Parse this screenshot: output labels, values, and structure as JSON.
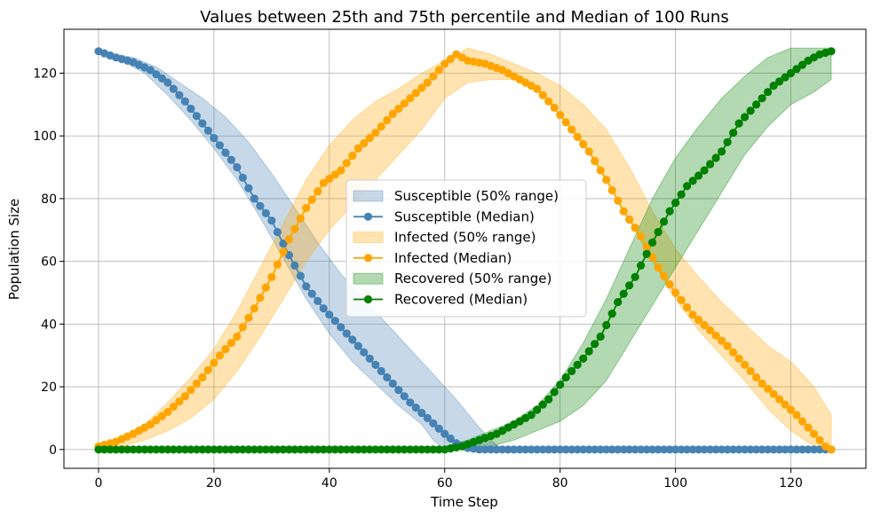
{
  "chart_data": {
    "type": "line",
    "title": "Values between 25th and 75th percentile and Median of 100 Runs",
    "xlabel": "Time Step",
    "ylabel": "Population Size",
    "xlim": [
      -6,
      133
    ],
    "ylim": [
      -6,
      134
    ],
    "xticks": [
      0,
      20,
      40,
      60,
      80,
      100,
      120
    ],
    "yticks": [
      0,
      20,
      40,
      60,
      80,
      100,
      120
    ],
    "grid": true,
    "legend_position": "center",
    "x_start": 0,
    "x_end": 127,
    "series": [
      {
        "name": "Susceptible",
        "median_label": "Susceptible (Median)",
        "range_label": "Susceptible (50% range)",
        "color": "#4682b4",
        "median_points": [
          [
            0,
            127
          ],
          [
            3,
            125
          ],
          [
            6,
            123.5
          ],
          [
            9,
            121
          ],
          [
            12,
            117
          ],
          [
            15,
            111
          ],
          [
            18,
            104
          ],
          [
            21,
            97
          ],
          [
            24,
            90
          ],
          [
            27,
            80
          ],
          [
            30,
            73
          ],
          [
            33,
            62
          ],
          [
            36,
            52
          ],
          [
            39,
            45
          ],
          [
            42,
            39
          ],
          [
            45,
            33
          ],
          [
            48,
            27
          ],
          [
            51,
            21
          ],
          [
            54,
            15
          ],
          [
            57,
            10
          ],
          [
            60,
            5
          ],
          [
            62,
            2
          ],
          [
            64,
            0.5
          ],
          [
            66,
            0
          ],
          [
            127,
            0
          ]
        ],
        "upper_points": [
          [
            0,
            127
          ],
          [
            6,
            125
          ],
          [
            10,
            122
          ],
          [
            14,
            117
          ],
          [
            18,
            112
          ],
          [
            22,
            106
          ],
          [
            26,
            98
          ],
          [
            30,
            88
          ],
          [
            34,
            77
          ],
          [
            38,
            66
          ],
          [
            42,
            56
          ],
          [
            46,
            48
          ],
          [
            50,
            40
          ],
          [
            54,
            32
          ],
          [
            58,
            24
          ],
          [
            62,
            16
          ],
          [
            66,
            7
          ],
          [
            68,
            3
          ],
          [
            70,
            0
          ],
          [
            127,
            0
          ]
        ],
        "lower_points": [
          [
            0,
            127
          ],
          [
            4,
            124
          ],
          [
            8,
            120
          ],
          [
            12,
            113
          ],
          [
            16,
            105
          ],
          [
            20,
            96
          ],
          [
            24,
            86
          ],
          [
            28,
            74
          ],
          [
            32,
            61
          ],
          [
            36,
            48
          ],
          [
            40,
            37
          ],
          [
            44,
            28
          ],
          [
            48,
            21
          ],
          [
            52,
            14
          ],
          [
            56,
            8
          ],
          [
            58,
            3
          ],
          [
            60,
            0
          ],
          [
            127,
            0
          ]
        ]
      },
      {
        "name": "Infected",
        "median_label": "Infected (Median)",
        "range_label": "Infected (50% range)",
        "color": "#ffa500",
        "median_points": [
          [
            0,
            1
          ],
          [
            3,
            2.5
          ],
          [
            6,
            5
          ],
          [
            9,
            8
          ],
          [
            12,
            12
          ],
          [
            15,
            17
          ],
          [
            18,
            23
          ],
          [
            21,
            30
          ],
          [
            24,
            36
          ],
          [
            27,
            45
          ],
          [
            30,
            55
          ],
          [
            33,
            67
          ],
          [
            36,
            77
          ],
          [
            39,
            85
          ],
          [
            42,
            89
          ],
          [
            45,
            96
          ],
          [
            48,
            101
          ],
          [
            51,
            107
          ],
          [
            54,
            112
          ],
          [
            57,
            117
          ],
          [
            60,
            123
          ],
          [
            62,
            126
          ],
          [
            64,
            124
          ],
          [
            67,
            123
          ],
          [
            70,
            121
          ],
          [
            73,
            118
          ],
          [
            76,
            115
          ],
          [
            79,
            109
          ],
          [
            82,
            102
          ],
          [
            85,
            95
          ],
          [
            88,
            86
          ],
          [
            91,
            76
          ],
          [
            94,
            68
          ],
          [
            97,
            58
          ],
          [
            100,
            50
          ],
          [
            103,
            43
          ],
          [
            106,
            38
          ],
          [
            109,
            33
          ],
          [
            112,
            27
          ],
          [
            115,
            21
          ],
          [
            118,
            16
          ],
          [
            121,
            11
          ],
          [
            124,
            5
          ],
          [
            126,
            1
          ],
          [
            127,
            0
          ]
        ],
        "upper_points": [
          [
            0,
            1
          ],
          [
            4,
            4
          ],
          [
            8,
            8
          ],
          [
            12,
            15
          ],
          [
            16,
            23
          ],
          [
            20,
            32
          ],
          [
            24,
            44
          ],
          [
            28,
            58
          ],
          [
            32,
            72
          ],
          [
            36,
            86
          ],
          [
            40,
            97
          ],
          [
            44,
            105
          ],
          [
            48,
            111
          ],
          [
            52,
            115
          ],
          [
            56,
            120
          ],
          [
            60,
            124
          ],
          [
            64,
            128
          ],
          [
            68,
            126
          ],
          [
            72,
            123
          ],
          [
            76,
            120
          ],
          [
            80,
            116
          ],
          [
            84,
            110
          ],
          [
            88,
            102
          ],
          [
            92,
            90
          ],
          [
            96,
            76
          ],
          [
            100,
            64
          ],
          [
            104,
            55
          ],
          [
            108,
            47
          ],
          [
            112,
            40
          ],
          [
            116,
            33
          ],
          [
            120,
            28
          ],
          [
            124,
            20
          ],
          [
            127,
            11
          ]
        ],
        "lower_points": [
          [
            0,
            0
          ],
          [
            4,
            1
          ],
          [
            8,
            3
          ],
          [
            12,
            6
          ],
          [
            16,
            10
          ],
          [
            20,
            16
          ],
          [
            24,
            25
          ],
          [
            28,
            36
          ],
          [
            32,
            48
          ],
          [
            36,
            60
          ],
          [
            40,
            70
          ],
          [
            44,
            78
          ],
          [
            48,
            86
          ],
          [
            52,
            94
          ],
          [
            56,
            102
          ],
          [
            60,
            112
          ],
          [
            64,
            117
          ],
          [
            68,
            118
          ],
          [
            72,
            118
          ],
          [
            76,
            114
          ],
          [
            80,
            108
          ],
          [
            84,
            98
          ],
          [
            88,
            86
          ],
          [
            92,
            73
          ],
          [
            96,
            60
          ],
          [
            100,
            48
          ],
          [
            104,
            38
          ],
          [
            108,
            30
          ],
          [
            112,
            22
          ],
          [
            116,
            13
          ],
          [
            120,
            6
          ],
          [
            124,
            1
          ],
          [
            127,
            0
          ]
        ]
      },
      {
        "name": "Recovered",
        "median_label": "Recovered (Median)",
        "range_label": "Recovered (50% range)",
        "color": "#008000",
        "median_points": [
          [
            0,
            0
          ],
          [
            60,
            0
          ],
          [
            63,
            1
          ],
          [
            66,
            3
          ],
          [
            69,
            5
          ],
          [
            72,
            8
          ],
          [
            75,
            11
          ],
          [
            78,
            16
          ],
          [
            81,
            23
          ],
          [
            84,
            29
          ],
          [
            87,
            36
          ],
          [
            90,
            47
          ],
          [
            93,
            55
          ],
          [
            96,
            66
          ],
          [
            99,
            76
          ],
          [
            102,
            84
          ],
          [
            105,
            89
          ],
          [
            108,
            95
          ],
          [
            111,
            104
          ],
          [
            114,
            110
          ],
          [
            117,
            116
          ],
          [
            120,
            120
          ],
          [
            123,
            124
          ],
          [
            125,
            126
          ],
          [
            127,
            127
          ]
        ],
        "upper_points": [
          [
            0,
            0
          ],
          [
            57,
            0
          ],
          [
            60,
            1
          ],
          [
            64,
            3
          ],
          [
            68,
            6
          ],
          [
            72,
            9
          ],
          [
            76,
            14
          ],
          [
            80,
            22
          ],
          [
            84,
            34
          ],
          [
            88,
            48
          ],
          [
            92,
            64
          ],
          [
            96,
            80
          ],
          [
            100,
            93
          ],
          [
            104,
            103
          ],
          [
            108,
            112
          ],
          [
            112,
            119
          ],
          [
            116,
            125
          ],
          [
            120,
            128
          ],
          [
            127,
            128
          ]
        ],
        "lower_points": [
          [
            0,
            0
          ],
          [
            64,
            0
          ],
          [
            68,
            1
          ],
          [
            72,
            3
          ],
          [
            76,
            6
          ],
          [
            80,
            9
          ],
          [
            84,
            14
          ],
          [
            88,
            22
          ],
          [
            92,
            34
          ],
          [
            96,
            46
          ],
          [
            100,
            58
          ],
          [
            104,
            70
          ],
          [
            108,
            82
          ],
          [
            112,
            94
          ],
          [
            116,
            103
          ],
          [
            120,
            110
          ],
          [
            124,
            114
          ],
          [
            127,
            118
          ]
        ]
      }
    ]
  }
}
